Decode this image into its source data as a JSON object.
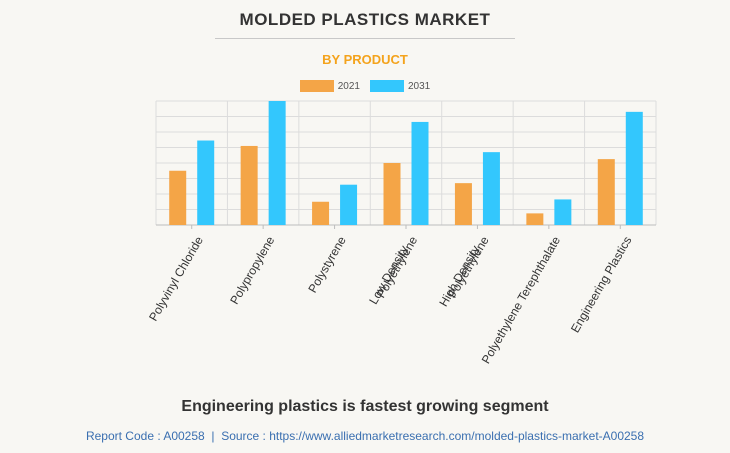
{
  "title": "MOLDED PLASTICS MARKET",
  "subtitle": "BY PRODUCT",
  "footer_note": "Engineering plastics is fastest growing segment",
  "source": {
    "report_code": "Report Code : A00258",
    "separator": "|",
    "url_text": "Source : https://www.alliedmarketresearch.com/molded-plastics-market-A00258"
  },
  "colors": {
    "series_2021": "#f4a547",
    "series_2031": "#33c7fd",
    "subtitle": "#f4a31c",
    "source_text": "#3a6fb0",
    "grid": "#dcdcdc"
  },
  "chart_data": {
    "type": "bar",
    "title": "MOLDED PLASTICS MARKET",
    "subtitle": "BY PRODUCT",
    "xlabel": "",
    "ylabel": "",
    "ylim": [
      0,
      8
    ],
    "grid": true,
    "legend_position": "top-center",
    "categories": [
      [
        "Polyvinyl Chloride"
      ],
      [
        "Polypropylene"
      ],
      [
        "Polystyrene"
      ],
      [
        "Low Density",
        "Polyethylene"
      ],
      [
        "High Density",
        "Polyethylene"
      ],
      [
        "Polyethylene Terephthalate"
      ],
      [
        "Engineering Plastics"
      ]
    ],
    "series": [
      {
        "name": "2021",
        "values": [
          3.5,
          5.1,
          1.5,
          4.0,
          2.7,
          0.75,
          4.25
        ]
      },
      {
        "name": "2031",
        "values": [
          5.45,
          8.0,
          2.6,
          6.65,
          4.7,
          1.65,
          7.3
        ]
      }
    ]
  }
}
